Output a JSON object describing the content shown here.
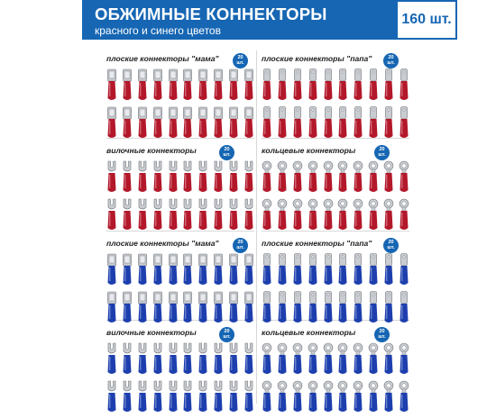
{
  "header": {
    "title": "ОБЖИМНЫЕ КОННЕКТОРЫ",
    "subtitle": "красного и синего цветов",
    "count": "160 шт.",
    "colors": {
      "banner": "#1666b3"
    }
  },
  "panels": [
    {
      "title": "плоские коннекторы \"мама\"",
      "badge_value": "20",
      "badge_unit": "шт.",
      "type": "female",
      "color": "red",
      "count": 20
    },
    {
      "title": "плоские коннекторы \"папа\"",
      "badge_value": "20",
      "badge_unit": "шт.",
      "type": "male",
      "color": "red",
      "count": 20
    },
    {
      "title": "вилочные коннекторы",
      "badge_value": "20",
      "badge_unit": "шт.",
      "type": "fork",
      "color": "red",
      "count": 20
    },
    {
      "title": "кольцевые коннекторы",
      "badge_value": "20",
      "badge_unit": "шт.",
      "type": "ring",
      "color": "red",
      "count": 20
    },
    {
      "title": "плоские коннекторы \"мама\"",
      "badge_value": "20",
      "badge_unit": "шт.",
      "type": "female",
      "color": "blue",
      "count": 20
    },
    {
      "title": "плоские коннекторы \"папа\"",
      "badge_value": "20",
      "badge_unit": "шт.",
      "type": "male",
      "color": "blue",
      "count": 20
    },
    {
      "title": "вилочные коннекторы",
      "badge_value": "20",
      "badge_unit": "шт.",
      "type": "fork",
      "color": "blue",
      "count": 20
    },
    {
      "title": "кольцевые коннекторы",
      "badge_value": "20",
      "badge_unit": "шт.",
      "type": "ring",
      "color": "blue",
      "count": 20
    }
  ],
  "colors": {
    "red": "#b3182a",
    "blue": "#1d3fae",
    "metal": "#c9ccd1"
  }
}
